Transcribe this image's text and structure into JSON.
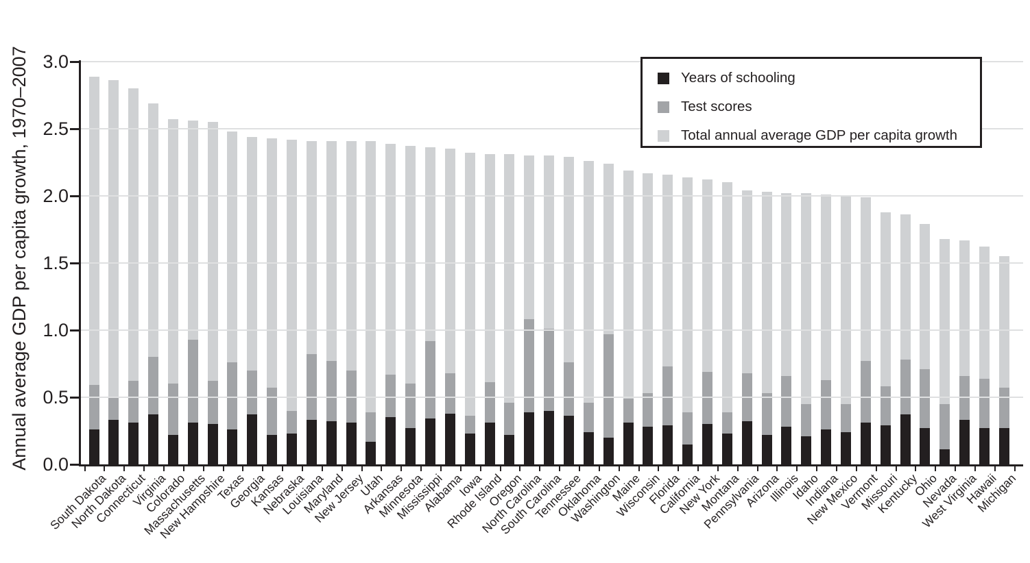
{
  "chart_data": {
    "type": "bar",
    "stacked": true,
    "title": "",
    "xlabel": "",
    "ylabel": "Annual average GDP per capita growth, 1970–2007",
    "ylim": [
      0,
      3.0
    ],
    "ytick_step": 0.5,
    "ytick_labels": [
      "0.0",
      "0.5",
      "1.0",
      "1.5",
      "2.0",
      "2.5",
      "3.0"
    ],
    "grid": true,
    "legend_position": "top-right",
    "series_semantics": "Years of schooling and Test scores are stacked segment contributions; the third series value is the total bar height (light-gray remainder = total − schooling − test scores).",
    "categories": [
      "South Dakota",
      "North Dakota",
      "Connecticut",
      "Virginia",
      "Colorado",
      "Massachusetts",
      "New Hampshire",
      "Texas",
      "Georgia",
      "Kansas",
      "Nebraska",
      "Louisiana",
      "Maryland",
      "New Jersey",
      "Utah",
      "Arkansas",
      "Minnesota",
      "Mississippi",
      "Alabama",
      "Iowa",
      "Rhode Island",
      "Oregon",
      "North Carolina",
      "South Carolina",
      "Tennessee",
      "Oklahoma",
      "Washington",
      "Maine",
      "Wisconsin",
      "Florida",
      "California",
      "New York",
      "Montana",
      "Pennsylvania",
      "Arizona",
      "Illinois",
      "Idaho",
      "Indiana",
      "New Mexico",
      "Vermont",
      "Missouri",
      "Kentucky",
      "Ohio",
      "Nevada",
      "West Virginia",
      "Hawaii",
      "Michigan"
    ],
    "series": [
      {
        "name": "Years of schooling",
        "color": "#231f20",
        "values": [
          0.26,
          0.33,
          0.31,
          0.37,
          0.22,
          0.31,
          0.3,
          0.26,
          0.37,
          0.22,
          0.23,
          0.33,
          0.32,
          0.31,
          0.17,
          0.35,
          0.27,
          0.34,
          0.38,
          0.23,
          0.31,
          0.22,
          0.39,
          0.4,
          0.36,
          0.24,
          0.2,
          0.31,
          0.28,
          0.29,
          0.15,
          0.3,
          0.23,
          0.32,
          0.22,
          0.28,
          0.21,
          0.26,
          0.24,
          0.31,
          0.29,
          0.37,
          0.27,
          0.11,
          0.33,
          0.27,
          0.27
        ]
      },
      {
        "name": "Test scores",
        "color": "#a2a4a7",
        "values": [
          0.33,
          0.17,
          0.31,
          0.43,
          0.38,
          0.62,
          0.32,
          0.5,
          0.33,
          0.35,
          0.17,
          0.49,
          0.45,
          0.39,
          0.22,
          0.32,
          0.33,
          0.58,
          0.3,
          0.13,
          0.3,
          0.24,
          0.69,
          0.61,
          0.4,
          0.22,
          0.77,
          0.18,
          0.25,
          0.44,
          0.24,
          0.39,
          0.16,
          0.36,
          0.31,
          0.38,
          0.24,
          0.37,
          0.21,
          0.46,
          0.29,
          0.41,
          0.44,
          0.34,
          0.33,
          0.37,
          0.3
        ]
      },
      {
        "name": "Total annual average GDP per capita growth",
        "color": "#cfd1d3",
        "represents": "total bar height",
        "values": [
          2.89,
          2.86,
          2.8,
          2.69,
          2.57,
          2.56,
          2.55,
          2.48,
          2.44,
          2.43,
          2.42,
          2.41,
          2.41,
          2.41,
          2.41,
          2.39,
          2.37,
          2.36,
          2.35,
          2.32,
          2.31,
          2.31,
          2.3,
          2.3,
          2.29,
          2.26,
          2.24,
          2.19,
          2.17,
          2.16,
          2.14,
          2.12,
          2.1,
          2.04,
          2.03,
          2.02,
          2.02,
          2.01,
          2.0,
          1.99,
          1.88,
          1.86,
          1.79,
          1.68,
          1.67,
          1.62,
          1.55
        ]
      }
    ],
    "style": {
      "gridline_color": "#dfe0e1",
      "axis_color": "#231f20",
      "background": "#ffffff"
    }
  }
}
